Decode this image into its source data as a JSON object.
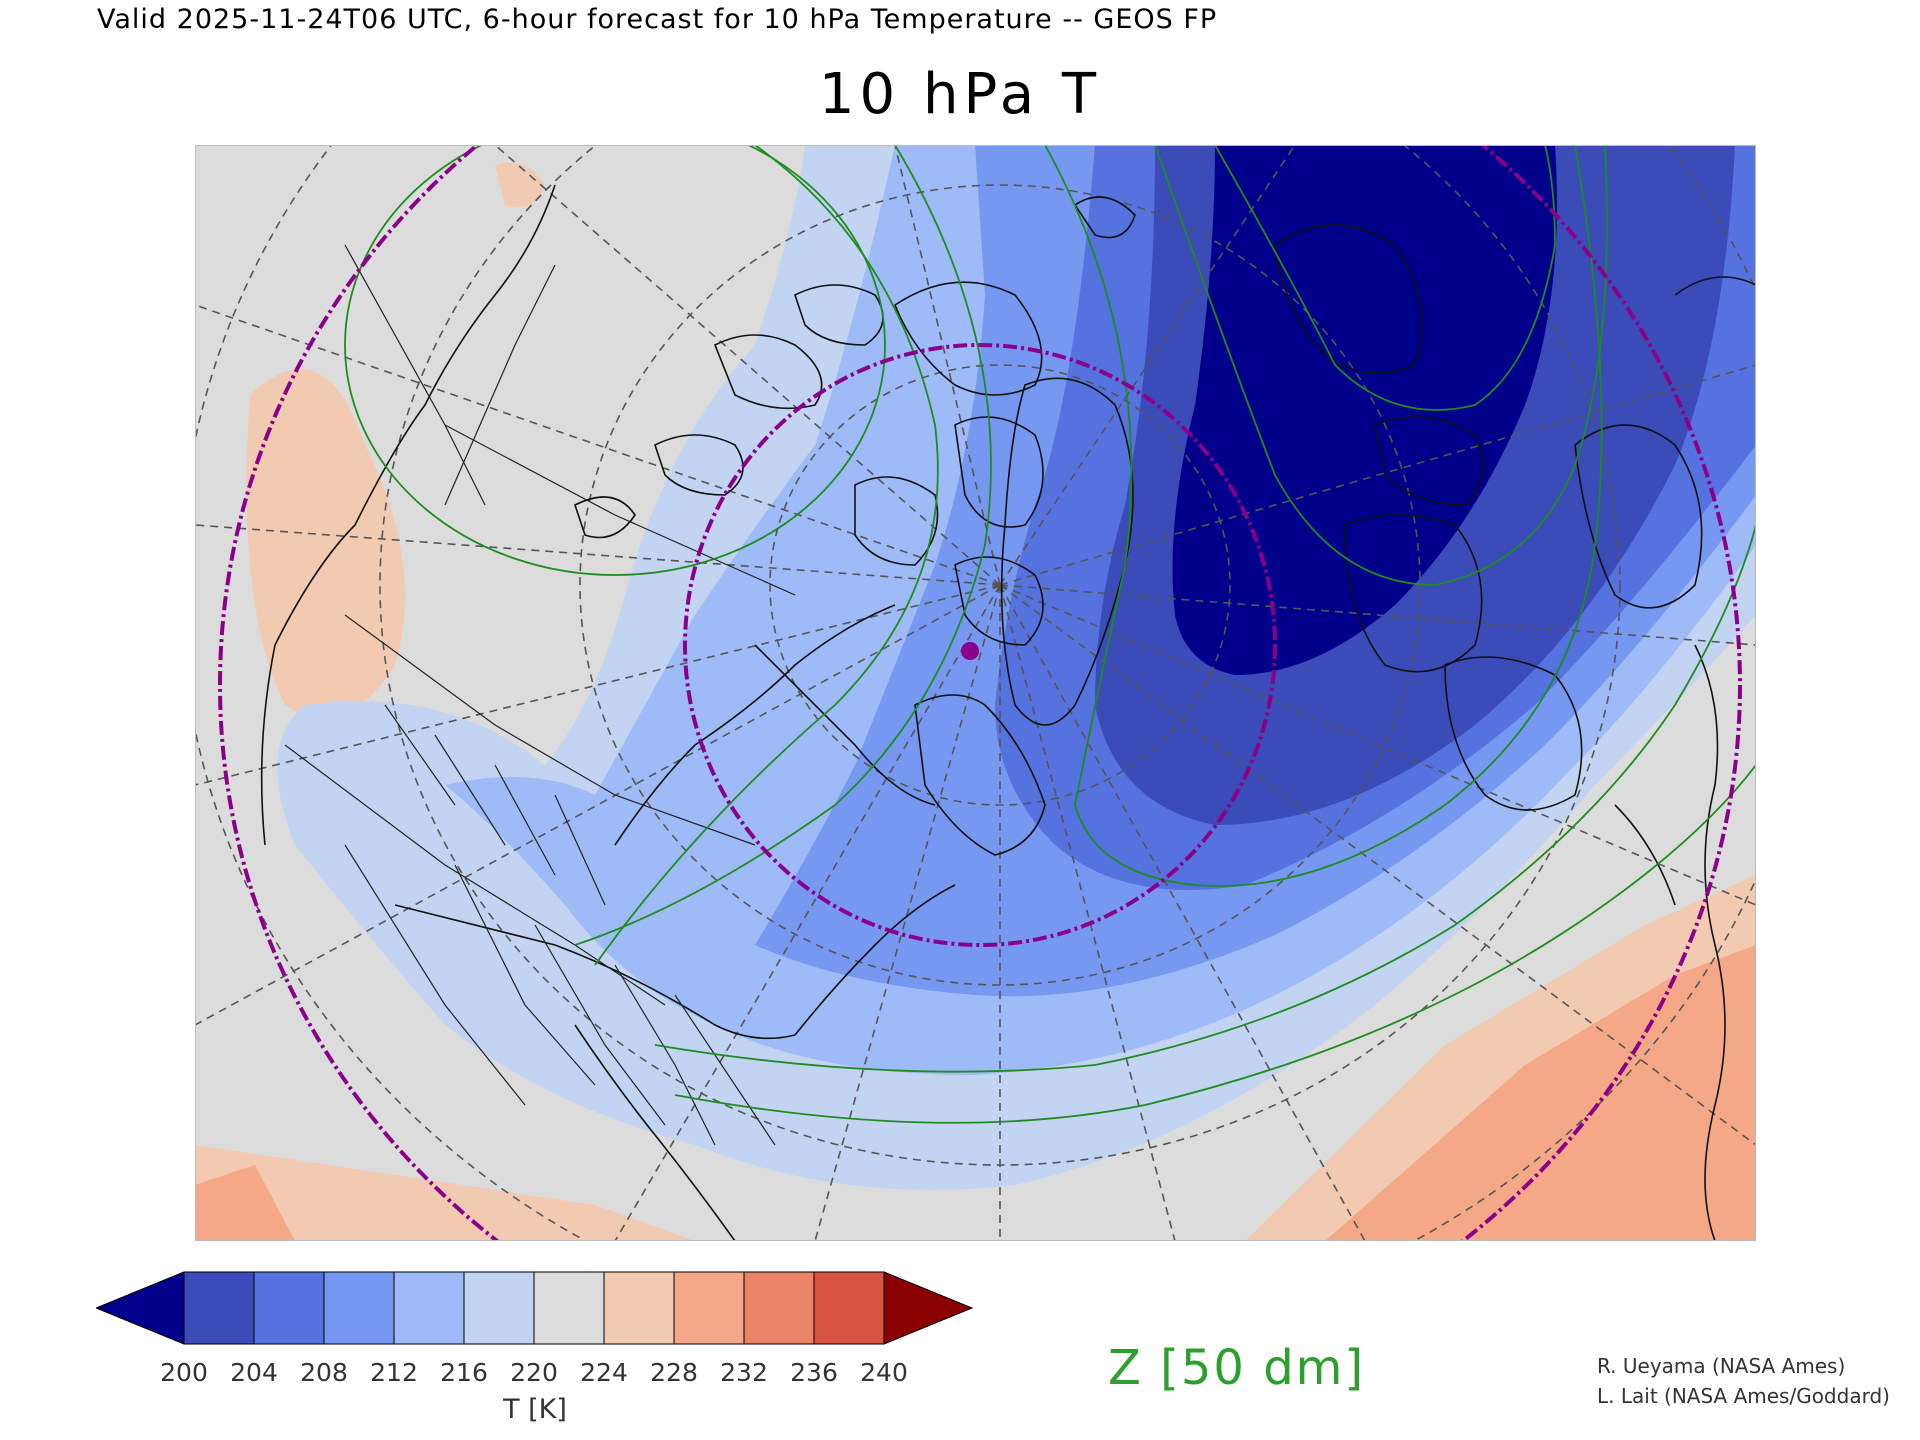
{
  "header": "Valid 2025-11-24T06 UTC, 6-hour forecast for 10 hPa Temperature -- GEOS FP",
  "title": "10 hPa T",
  "colorbar": {
    "ticks": [
      "200",
      "204",
      "208",
      "212",
      "216",
      "220",
      "224",
      "228",
      "232",
      "236",
      "240"
    ],
    "colors": [
      "#3b4bb8",
      "#5572de",
      "#7698f0",
      "#9fbbf7",
      "#c3d4f3",
      "#dcdcdc",
      "#f2cab2",
      "#f5a887",
      "#ec8266",
      "#d95440"
    ],
    "under_color": "#00008b",
    "over_color": "#8b0000",
    "label": "T [K]"
  },
  "contour_label": "Z [50 dm]",
  "credits": [
    "R. Ueyama (NASA Ames)",
    "L. Lait (NASA Ames/Goddard)"
  ],
  "map": {
    "projection": "polar stereographic (Northern Hemisphere)",
    "overlays": [
      "temperature shading",
      "geopotential height contours (green)",
      "lat/lon grid (dashed gray)",
      "purple dash-dot circles",
      "coastlines and borders"
    ],
    "marker_color": "#8b008b",
    "contour_color": "#1e8c1e"
  }
}
